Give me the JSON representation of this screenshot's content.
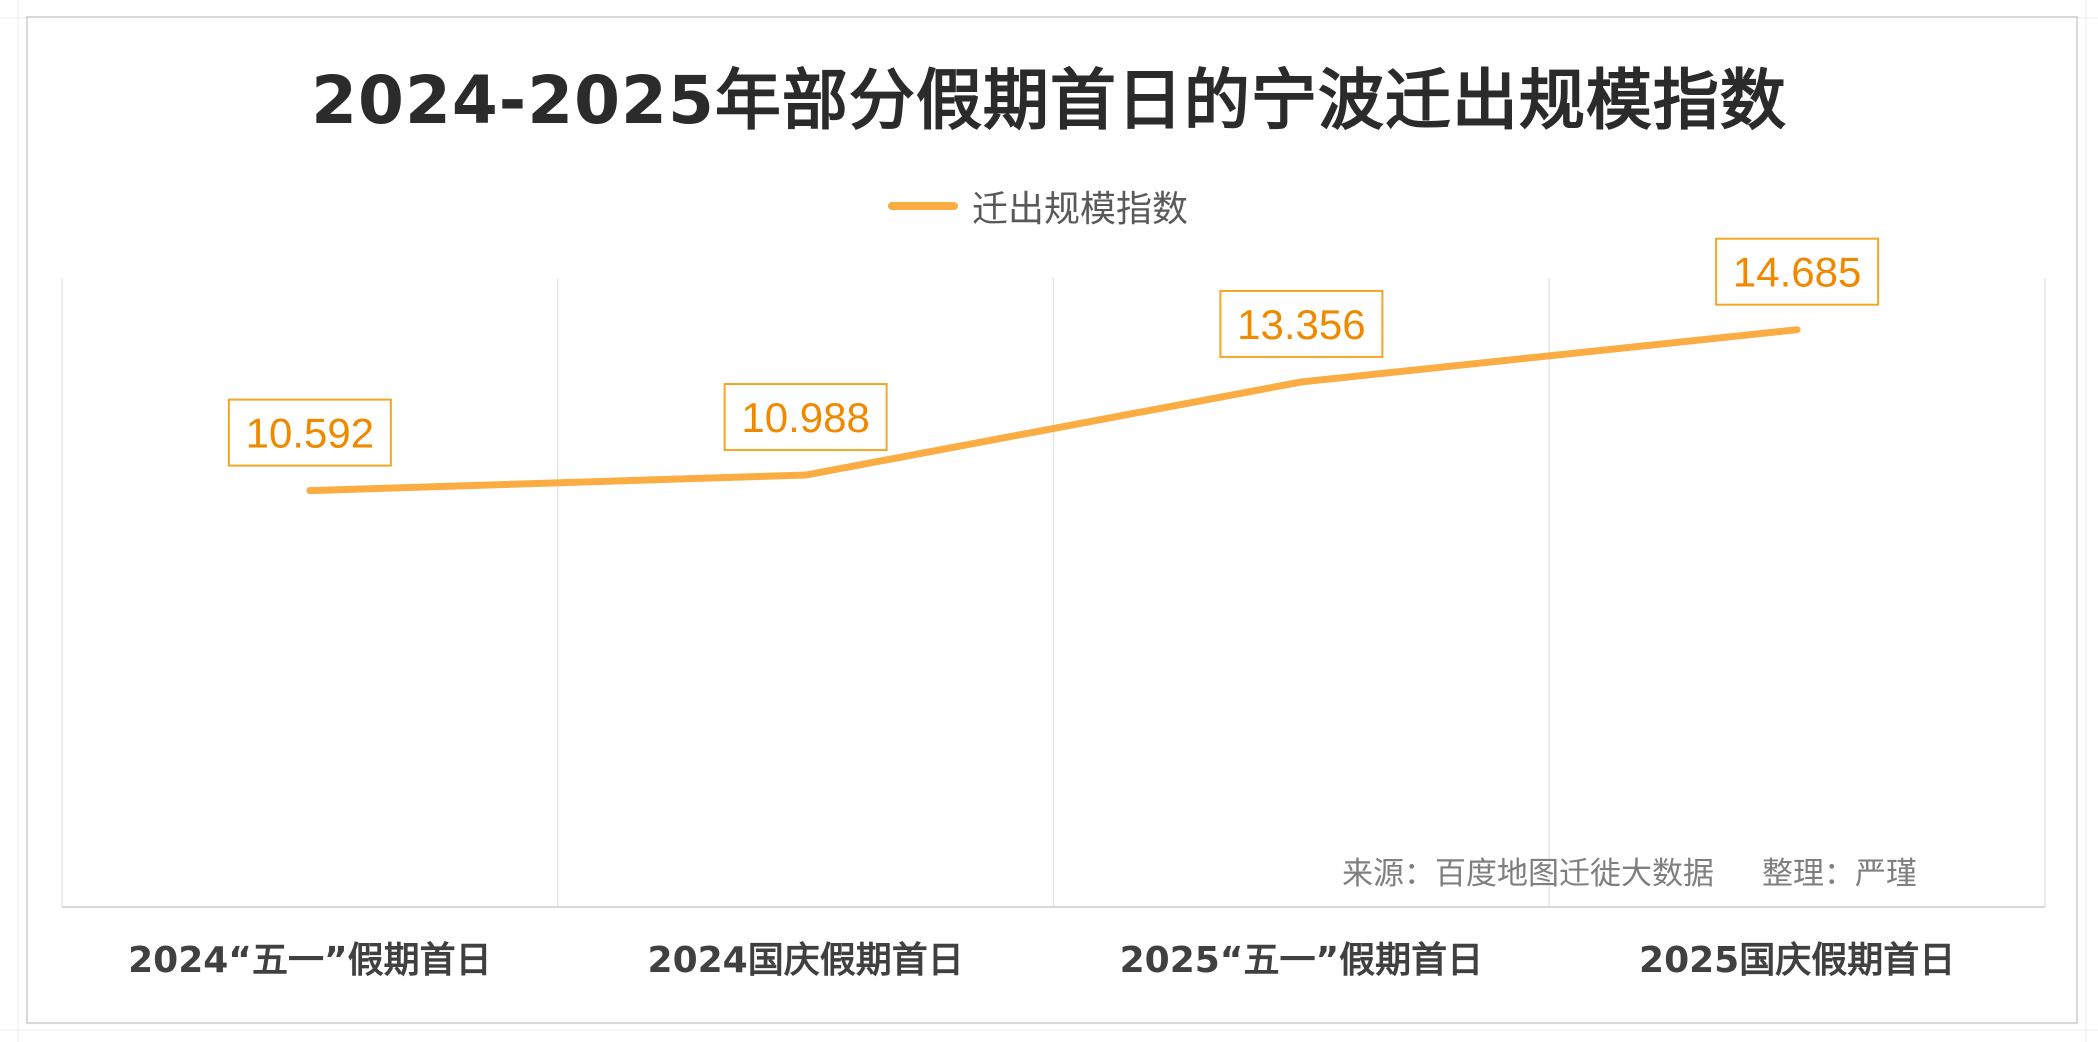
{
  "page": {
    "source_text": "来源：百度地图迁徙大数据",
    "editor_text": "整理：严瑾"
  },
  "colors": {
    "line": "#fbad44",
    "label_text": "#ef8a00",
    "label_border": "#f5a623",
    "title": "#2b2b2b",
    "axis_label": "#404040",
    "grid": "#e6e6e6"
  },
  "chart_data": {
    "type": "line",
    "title": "2024-2025年部分假期首日的宁波迁出规模指数",
    "xlabel": "",
    "ylabel": "",
    "categories": [
      "2024“五一”假期首日",
      "2024国庆假期首日",
      "2025“五一”假期首日",
      "2025国庆假期首日"
    ],
    "series": [
      {
        "name": "迁出规模指数",
        "values": [
          10.592,
          10.988,
          13.356,
          14.685
        ],
        "data_labels": [
          "10.592",
          "10.988",
          "13.356",
          "14.685"
        ]
      }
    ],
    "ylim": [
      0,
      16
    ],
    "grid": "vertical category gridlines",
    "legend": "top-center",
    "data_labels": "boxed, above points"
  }
}
